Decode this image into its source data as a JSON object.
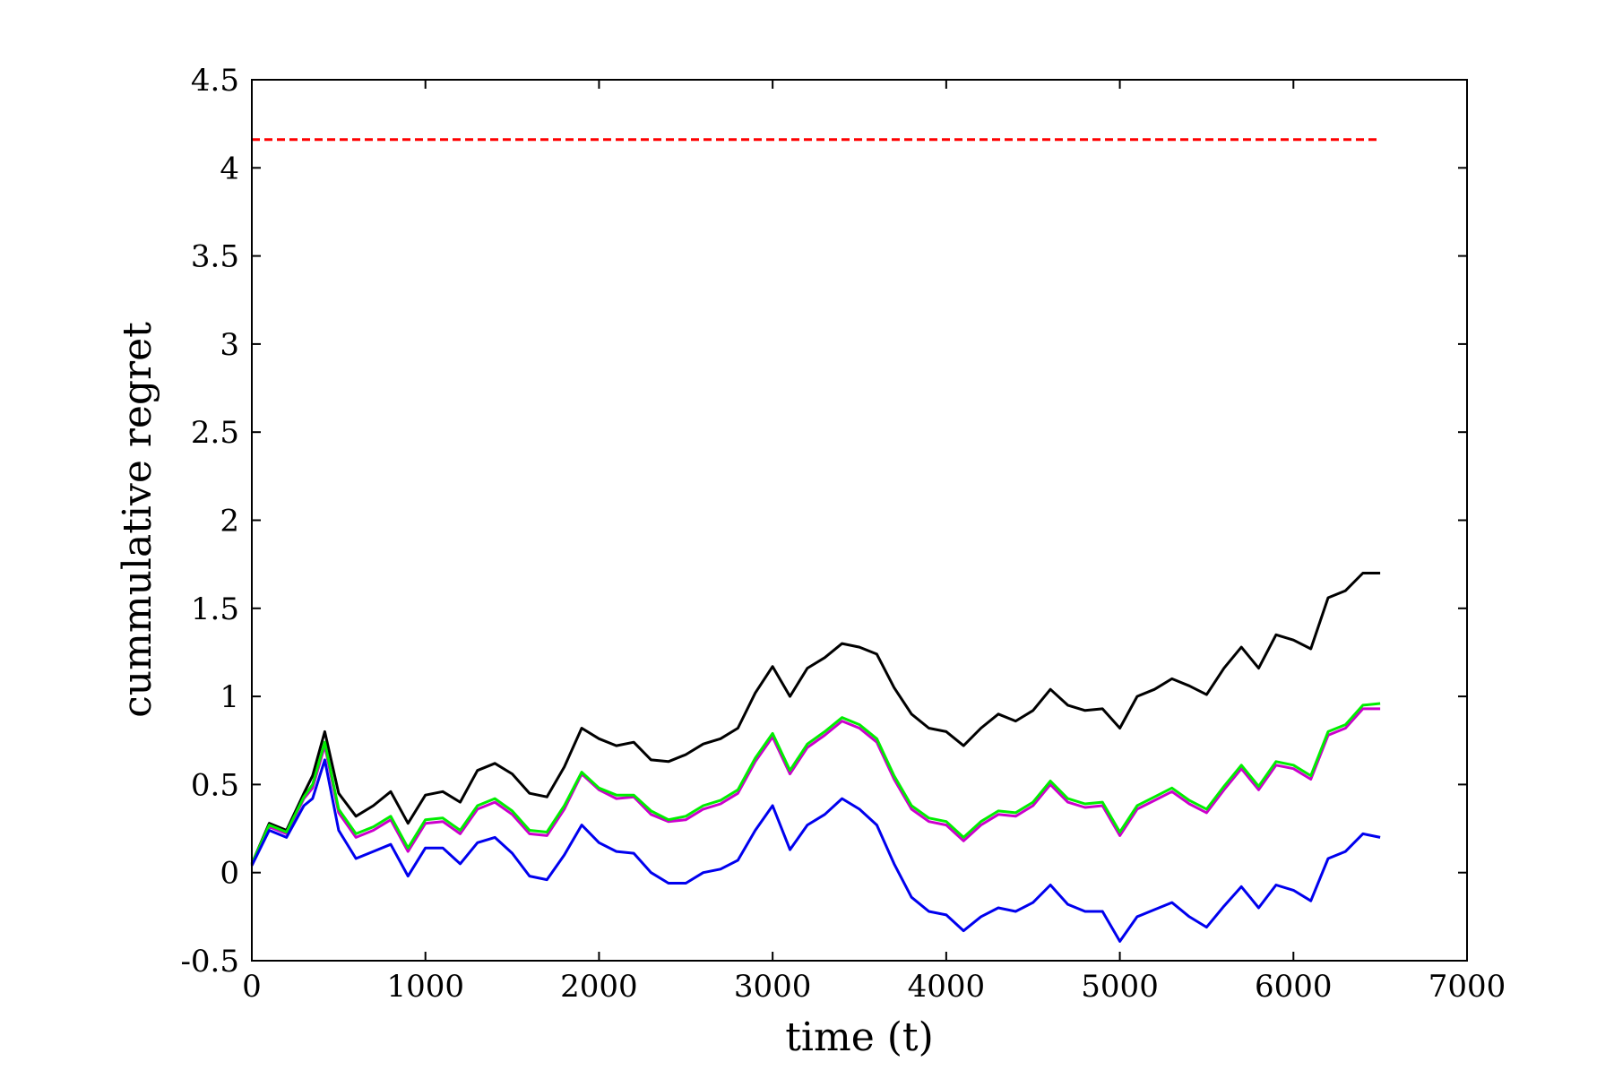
{
  "chart_data": {
    "type": "line",
    "title": "",
    "xlabel": "time (t)",
    "ylabel": "cummulative regret",
    "xlim": [
      0,
      7000
    ],
    "ylim": [
      -0.5,
      4.5
    ],
    "xticks": [
      0,
      1000,
      2000,
      3000,
      4000,
      5000,
      6000,
      7000
    ],
    "yticks": [
      -0.5,
      0,
      0.5,
      1,
      1.5,
      2,
      2.5,
      3,
      3.5,
      4,
      4.5
    ],
    "xtick_labels": [
      "0",
      "1000",
      "2000",
      "3000",
      "4000",
      "5000",
      "6000",
      "7000"
    ],
    "ytick_labels": [
      "-0.5",
      "0",
      "0.5",
      "1",
      "1.5",
      "2",
      "2.5",
      "3",
      "3.5",
      "4",
      "4.5"
    ],
    "grid": false,
    "legend": "none",
    "series": [
      {
        "color": "#ff0000",
        "style": "dashed",
        "x": [
          0,
          6500
        ],
        "y": [
          4.16,
          4.16
        ]
      },
      {
        "color": "#000000",
        "style": "solid",
        "x": [
          0,
          100,
          200,
          300,
          350,
          420,
          500,
          600,
          700,
          800,
          900,
          1000,
          1100,
          1200,
          1300,
          1400,
          1500,
          1600,
          1700,
          1800,
          1900,
          2000,
          2100,
          2200,
          2300,
          2400,
          2500,
          2600,
          2700,
          2800,
          2900,
          3000,
          3100,
          3200,
          3300,
          3400,
          3500,
          3600,
          3700,
          3800,
          3900,
          4000,
          4100,
          4200,
          4300,
          4400,
          4500,
          4600,
          4700,
          4800,
          4900,
          5000,
          5100,
          5200,
          5300,
          5400,
          5500,
          5600,
          5700,
          5800,
          5900,
          6000,
          6100,
          6200,
          6300,
          6400,
          6500
        ],
        "y": [
          0.05,
          0.28,
          0.24,
          0.45,
          0.55,
          0.8,
          0.45,
          0.32,
          0.38,
          0.46,
          0.28,
          0.44,
          0.46,
          0.4,
          0.58,
          0.62,
          0.56,
          0.45,
          0.43,
          0.6,
          0.82,
          0.76,
          0.72,
          0.74,
          0.64,
          0.63,
          0.67,
          0.73,
          0.76,
          0.82,
          1.02,
          1.17,
          1.0,
          1.16,
          1.22,
          1.3,
          1.28,
          1.24,
          1.05,
          0.9,
          0.82,
          0.8,
          0.72,
          0.82,
          0.9,
          0.86,
          0.92,
          1.04,
          0.95,
          0.92,
          0.93,
          0.82,
          1.0,
          1.04,
          1.1,
          1.06,
          1.01,
          1.16,
          1.28,
          1.16,
          1.35,
          1.32,
          1.27,
          1.56,
          1.6,
          1.7,
          1.7
        ]
      },
      {
        "color": "#cc00cc",
        "style": "solid",
        "x": [
          0,
          100,
          200,
          300,
          350,
          420,
          500,
          600,
          700,
          800,
          900,
          1000,
          1100,
          1200,
          1300,
          1400,
          1500,
          1600,
          1700,
          1800,
          1900,
          2000,
          2100,
          2200,
          2300,
          2400,
          2500,
          2600,
          2700,
          2800,
          2900,
          3000,
          3100,
          3200,
          3300,
          3400,
          3500,
          3600,
          3700,
          3800,
          3900,
          4000,
          4100,
          4200,
          4300,
          4400,
          4500,
          4600,
          4700,
          4800,
          4900,
          5000,
          5100,
          5200,
          5300,
          5400,
          5500,
          5600,
          5700,
          5800,
          5900,
          6000,
          6100,
          6200,
          6300,
          6400,
          6500
        ],
        "y": [
          0.04,
          0.26,
          0.22,
          0.42,
          0.48,
          0.72,
          0.34,
          0.2,
          0.24,
          0.3,
          0.12,
          0.28,
          0.29,
          0.22,
          0.36,
          0.4,
          0.33,
          0.22,
          0.21,
          0.36,
          0.56,
          0.47,
          0.42,
          0.43,
          0.33,
          0.29,
          0.3,
          0.36,
          0.39,
          0.45,
          0.63,
          0.77,
          0.56,
          0.71,
          0.78,
          0.86,
          0.82,
          0.74,
          0.53,
          0.36,
          0.29,
          0.27,
          0.18,
          0.27,
          0.33,
          0.32,
          0.38,
          0.5,
          0.4,
          0.37,
          0.38,
          0.21,
          0.36,
          0.41,
          0.46,
          0.39,
          0.34,
          0.47,
          0.59,
          0.47,
          0.61,
          0.59,
          0.53,
          0.78,
          0.82,
          0.93,
          0.93
        ]
      },
      {
        "color": "#00ee00",
        "style": "solid",
        "x": [
          0,
          100,
          200,
          300,
          350,
          420,
          500,
          600,
          700,
          800,
          900,
          1000,
          1100,
          1200,
          1300,
          1400,
          1500,
          1600,
          1700,
          1800,
          1900,
          2000,
          2100,
          2200,
          2300,
          2400,
          2500,
          2600,
          2700,
          2800,
          2900,
          3000,
          3100,
          3200,
          3300,
          3400,
          3500,
          3600,
          3700,
          3800,
          3900,
          4000,
          4100,
          4200,
          4300,
          4400,
          4500,
          4600,
          4700,
          4800,
          4900,
          5000,
          5100,
          5200,
          5300,
          5400,
          5500,
          5600,
          5700,
          5800,
          5900,
          6000,
          6100,
          6200,
          6300,
          6400,
          6500
        ],
        "y": [
          0.05,
          0.27,
          0.23,
          0.43,
          0.5,
          0.74,
          0.36,
          0.22,
          0.26,
          0.32,
          0.14,
          0.3,
          0.31,
          0.24,
          0.38,
          0.42,
          0.35,
          0.24,
          0.23,
          0.38,
          0.57,
          0.48,
          0.44,
          0.44,
          0.35,
          0.3,
          0.32,
          0.38,
          0.41,
          0.47,
          0.65,
          0.79,
          0.58,
          0.73,
          0.8,
          0.88,
          0.84,
          0.76,
          0.55,
          0.38,
          0.31,
          0.29,
          0.2,
          0.29,
          0.35,
          0.34,
          0.4,
          0.52,
          0.42,
          0.39,
          0.4,
          0.23,
          0.38,
          0.43,
          0.48,
          0.41,
          0.36,
          0.49,
          0.61,
          0.49,
          0.63,
          0.61,
          0.55,
          0.8,
          0.84,
          0.95,
          0.96
        ]
      },
      {
        "color": "#0000ee",
        "style": "solid",
        "x": [
          0,
          100,
          200,
          300,
          350,
          420,
          500,
          600,
          700,
          800,
          900,
          1000,
          1100,
          1200,
          1300,
          1400,
          1500,
          1600,
          1700,
          1800,
          1900,
          2000,
          2100,
          2200,
          2300,
          2400,
          2500,
          2600,
          2700,
          2800,
          2900,
          3000,
          3100,
          3200,
          3300,
          3400,
          3500,
          3600,
          3700,
          3800,
          3900,
          4000,
          4100,
          4200,
          4300,
          4400,
          4500,
          4600,
          4700,
          4800,
          4900,
          5000,
          5100,
          5200,
          5300,
          5400,
          5500,
          5600,
          5700,
          5800,
          5900,
          6000,
          6100,
          6200,
          6300,
          6400,
          6500
        ],
        "y": [
          0.04,
          0.24,
          0.2,
          0.38,
          0.42,
          0.64,
          0.24,
          0.08,
          0.12,
          0.16,
          -0.02,
          0.14,
          0.14,
          0.05,
          0.17,
          0.2,
          0.11,
          -0.02,
          -0.04,
          0.1,
          0.27,
          0.17,
          0.12,
          0.11,
          0.0,
          -0.06,
          -0.06,
          0.0,
          0.02,
          0.07,
          0.24,
          0.38,
          0.13,
          0.27,
          0.33,
          0.42,
          0.36,
          0.27,
          0.05,
          -0.14,
          -0.22,
          -0.24,
          -0.33,
          -0.25,
          -0.2,
          -0.22,
          -0.17,
          -0.07,
          -0.18,
          -0.22,
          -0.22,
          -0.39,
          -0.25,
          -0.21,
          -0.17,
          -0.25,
          -0.31,
          -0.19,
          -0.08,
          -0.2,
          -0.07,
          -0.1,
          -0.16,
          0.08,
          0.12,
          0.22,
          0.2
        ]
      }
    ]
  }
}
